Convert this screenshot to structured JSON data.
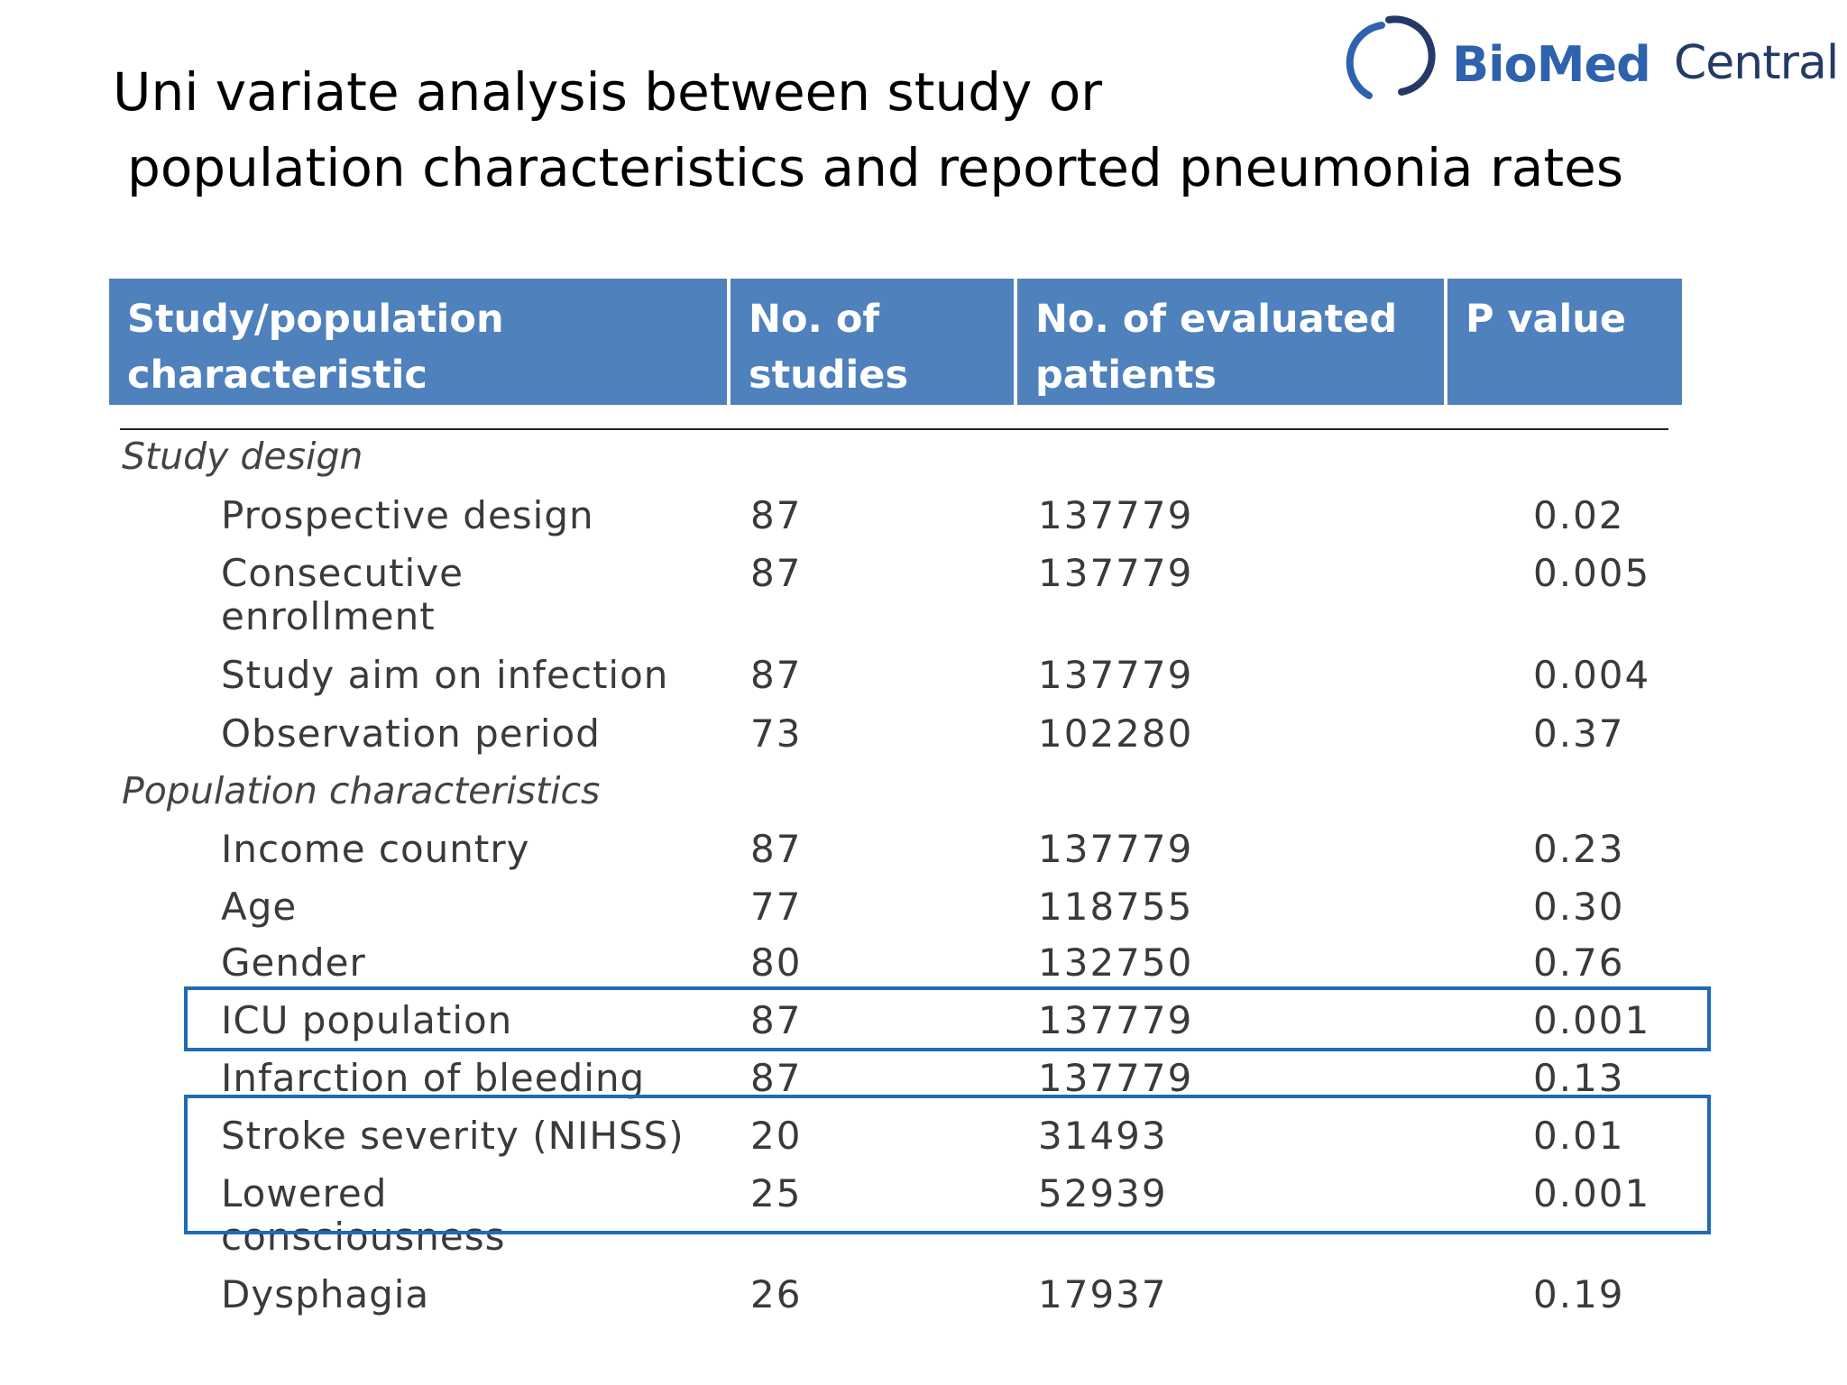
{
  "slide": {
    "title_line1": "Uni variate analysis between study or",
    "title_line2": "population characteristics and reported pneumonia rates"
  },
  "logo": {
    "brand_part1": "BioMed",
    "brand_part2": "Central"
  },
  "table": {
    "columns": [
      "Study/population characteristic",
      "No. of studies",
      "No. of evaluated patients",
      "P value"
    ],
    "sections": [
      {
        "label": "Study design",
        "rows": [
          {
            "characteristic": "Prospective design",
            "studies": "87",
            "patients": "137779",
            "p": "0.02"
          },
          {
            "characteristic": "Consecutive enrollment",
            "studies": "87",
            "patients": "137779",
            "p": "0.005"
          },
          {
            "characteristic": "Study aim on infection",
            "studies": "87",
            "patients": "137779",
            "p": "0.004"
          },
          {
            "characteristic": "Observation period",
            "studies": "73",
            "patients": "102280",
            "p": "0.37"
          }
        ]
      },
      {
        "label": "Population characteristics",
        "rows": [
          {
            "characteristic": "Income country",
            "studies": "87",
            "patients": "137779",
            "p": "0.23"
          },
          {
            "characteristic": "Age",
            "studies": "77",
            "patients": "118755",
            "p": "0.30"
          },
          {
            "characteristic": "Gender",
            "studies": "80",
            "patients": "132750",
            "p": "0.76"
          },
          {
            "characteristic": "ICU population",
            "studies": "87",
            "patients": "137779",
            "p": "0.001"
          },
          {
            "characteristic": "Infarction of bleeding",
            "studies": "87",
            "patients": "137779",
            "p": "0.13"
          },
          {
            "characteristic": "Stroke severity (NIHSS)",
            "studies": "20",
            "patients": "31493",
            "p": "0.01"
          },
          {
            "characteristic": "Lowered consciousness",
            "studies": "25",
            "patients": "52939",
            "p": "0.001"
          },
          {
            "characteristic": "Dysphagia",
            "studies": "26",
            "patients": "17937",
            "p": "0.19"
          }
        ]
      }
    ]
  },
  "colors": {
    "header_bg": "#4f81bd",
    "highlight_box": "#1f6bb5",
    "logo_blue": "#2f62ad"
  }
}
